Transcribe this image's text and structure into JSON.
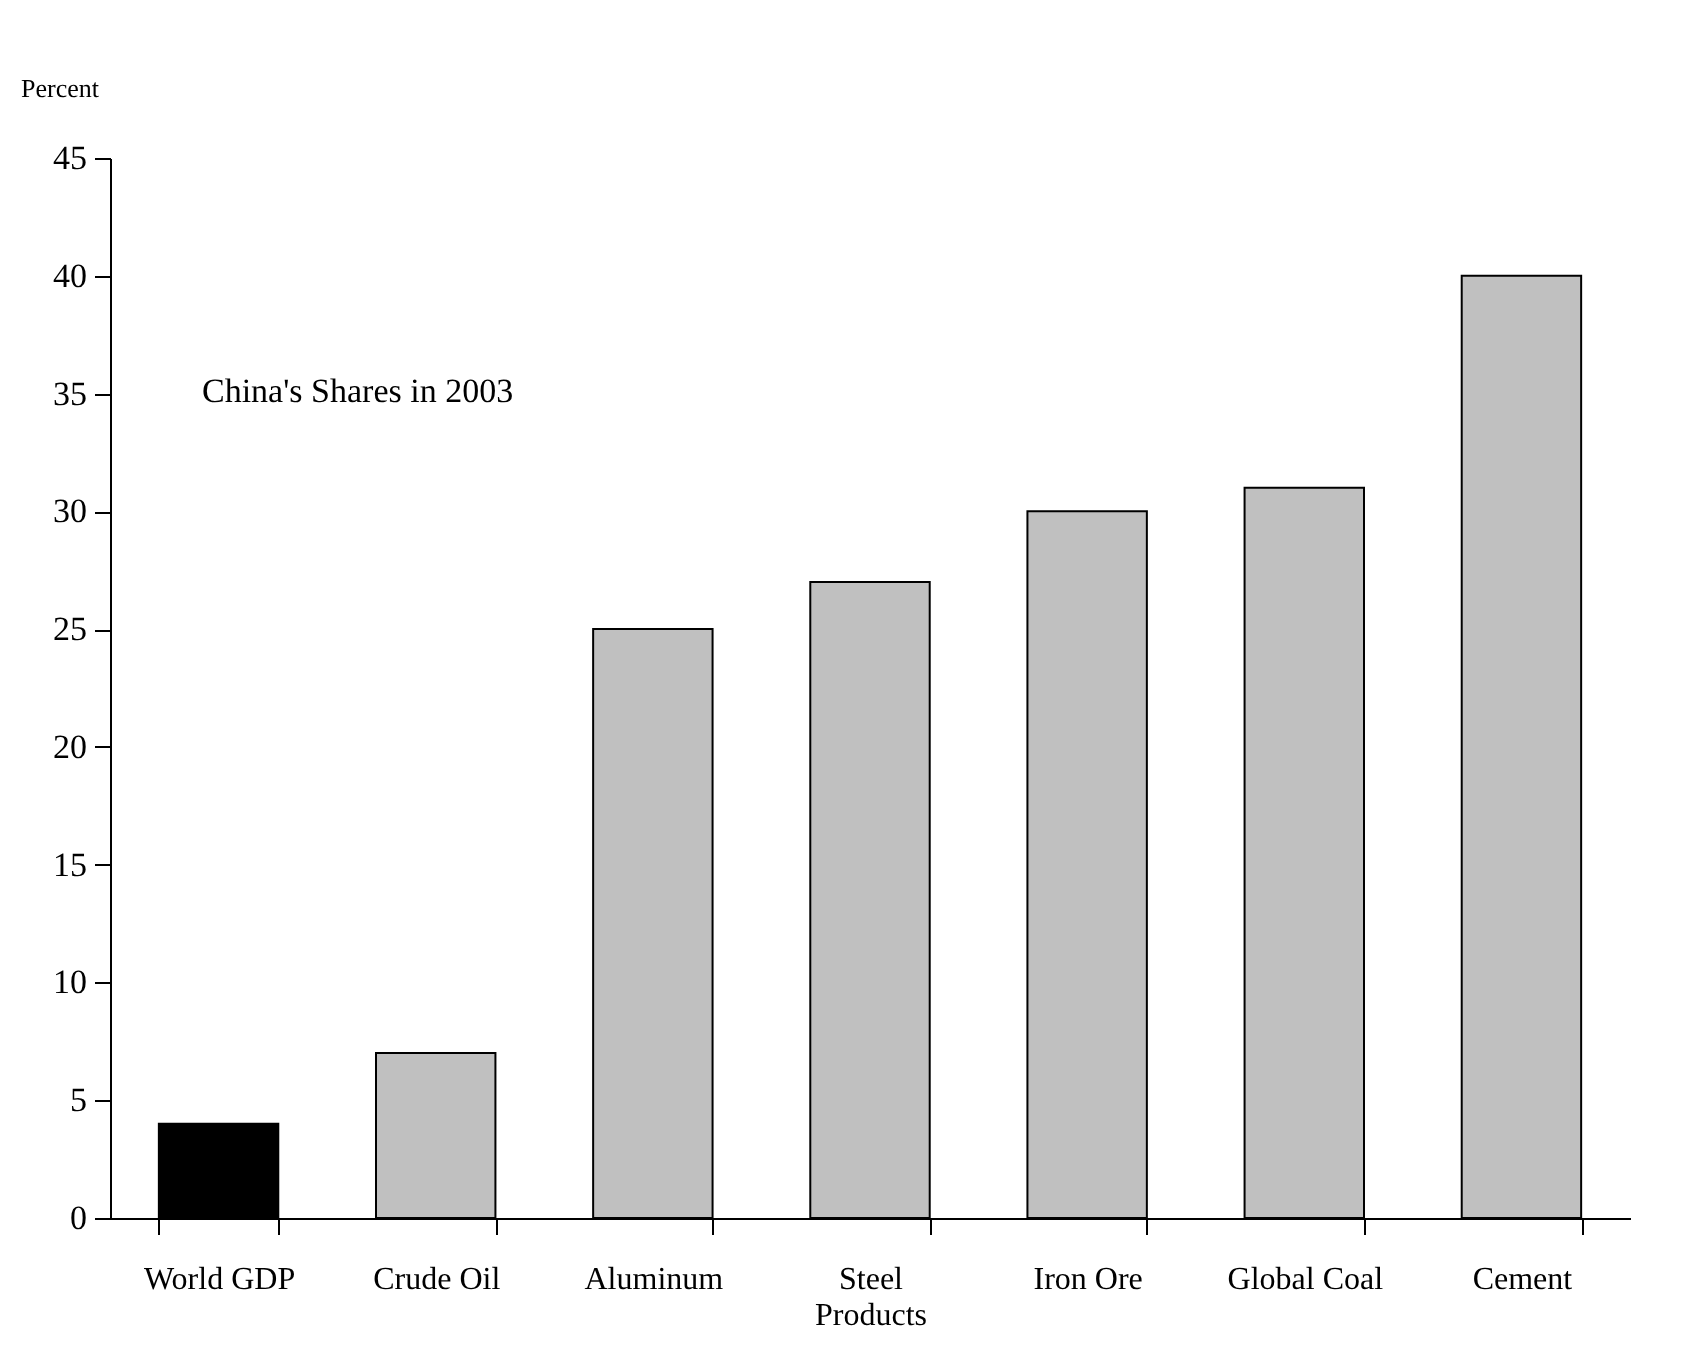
{
  "chart_data": {
    "type": "bar",
    "categories": [
      "World GDP",
      "Crude Oil",
      "Aluminum",
      "Steel Products",
      "Iron Ore",
      "Global Coal",
      "Cement"
    ],
    "values": [
      4,
      7,
      25,
      27,
      30,
      31,
      40
    ],
    "colors": [
      "#000000",
      "#c0c0c0",
      "#c0c0c0",
      "#c0c0c0",
      "#c0c0c0",
      "#c0c0c0",
      "#c0c0c0"
    ],
    "ylabel": "Percent",
    "annotations": [
      "China's Shares in 2003"
    ],
    "ylim": [
      0,
      45
    ],
    "yticks": [
      0,
      5,
      10,
      15,
      20,
      25,
      30,
      35,
      40,
      45
    ],
    "grid": false
  }
}
